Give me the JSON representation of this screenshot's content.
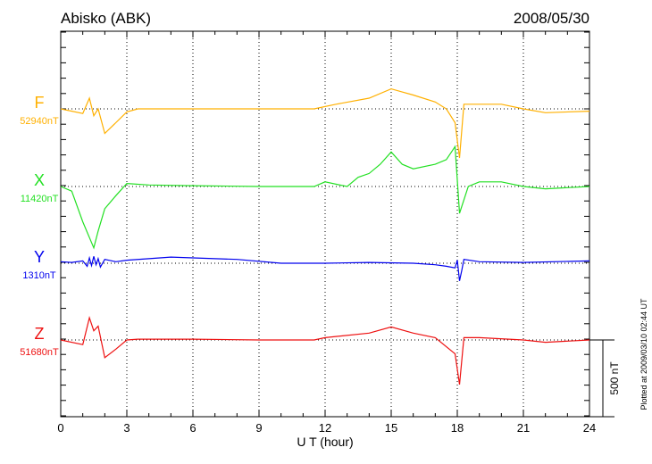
{
  "chart_data": {
    "type": "line",
    "title": "Abisko (ABK)",
    "date": "2008/05/30",
    "xlabel": "U T (hour)",
    "xlim": [
      0,
      24
    ],
    "xticks": [
      "0",
      "3",
      "6",
      "9",
      "12",
      "15",
      "18",
      "21",
      "24"
    ],
    "scale_label": "500 nT",
    "scale_nT": 500,
    "footnote": "Plotted at 2009/03/10 02:44 UT",
    "grid": "dotted at 3-hour intervals and component baselines",
    "series": [
      {
        "name": "F",
        "baseline_label": "52940nT",
        "color": "#ffb000",
        "x": [
          0,
          1.0,
          1.3,
          1.5,
          1.7,
          2.0,
          2.5,
          3.0,
          3.5,
          6,
          9,
          11.5,
          12.5,
          14,
          15,
          15.5,
          16,
          17,
          17.5,
          17.9,
          18.1,
          18.3,
          19,
          20,
          21,
          22,
          24
        ],
        "y": [
          0,
          -30,
          70,
          -45,
          0,
          -160,
          -90,
          -20,
          0,
          0,
          0,
          0,
          30,
          70,
          130,
          110,
          90,
          45,
          0,
          -90,
          -320,
          30,
          30,
          30,
          0,
          -25,
          -15
        ]
      },
      {
        "name": "X",
        "baseline_label": "11420nT",
        "color": "#22e022",
        "x": [
          0,
          0.5,
          1.0,
          1.5,
          1.7,
          2.0,
          2.5,
          3.0,
          4,
          6,
          9,
          11.5,
          12,
          13,
          13.5,
          14,
          14.5,
          15,
          15.5,
          16,
          17,
          17.5,
          17.9,
          18.1,
          18.5,
          19,
          20,
          21,
          22,
          24
        ],
        "y": [
          0,
          -30,
          -230,
          -400,
          -290,
          -145,
          -60,
          20,
          10,
          5,
          0,
          0,
          30,
          0,
          60,
          85,
          145,
          225,
          145,
          115,
          145,
          175,
          260,
          -175,
          0,
          30,
          30,
          0,
          -15,
          0
        ]
      },
      {
        "name": "Y",
        "baseline_label": "1310nT",
        "color": "#0000ee",
        "x": [
          0,
          0.5,
          1.0,
          1.2,
          1.3,
          1.4,
          1.5,
          1.6,
          1.7,
          1.8,
          2.0,
          2.5,
          3.0,
          5,
          8,
          10,
          12,
          14,
          16,
          17,
          17.5,
          17.9,
          18.0,
          18.1,
          18.2,
          18.3,
          19,
          21,
          24
        ],
        "y": [
          10,
          5,
          15,
          -20,
          35,
          -15,
          45,
          -10,
          30,
          -25,
          25,
          10,
          20,
          40,
          25,
          0,
          0,
          5,
          0,
          -10,
          -20,
          -30,
          20,
          -115,
          -50,
          25,
          10,
          5,
          15
        ]
      },
      {
        "name": "Z",
        "baseline_label": "51680nT",
        "color": "#ee1111",
        "x": [
          0,
          1.0,
          1.3,
          1.5,
          1.7,
          2.0,
          2.5,
          3.0,
          3.5,
          6,
          9,
          11.5,
          12,
          14,
          15,
          16,
          17,
          17.9,
          18.1,
          18.3,
          19,
          21,
          22,
          24
        ],
        "y": [
          0,
          -30,
          145,
          60,
          90,
          -115,
          -60,
          0,
          5,
          5,
          0,
          0,
          15,
          45,
          85,
          45,
          15,
          -90,
          -290,
          15,
          15,
          0,
          -15,
          0
        ]
      }
    ]
  }
}
